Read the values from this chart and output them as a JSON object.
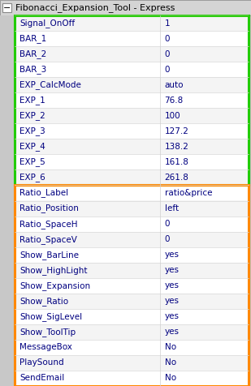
{
  "title": "Fibonacci_Expansion_Tool - Express",
  "green_rows": [
    [
      "Signal_OnOff",
      "1"
    ],
    [
      "BAR_1",
      "0"
    ],
    [
      "BAR_2",
      "0"
    ],
    [
      "BAR_3",
      "0"
    ],
    [
      "EXP_CalcMode",
      "auto"
    ],
    [
      "EXP_1",
      "76.8"
    ],
    [
      "EXP_2",
      "100"
    ],
    [
      "EXP_3",
      "127.2"
    ],
    [
      "EXP_4",
      "138.2"
    ],
    [
      "EXP_5",
      "161.8"
    ],
    [
      "EXP_6",
      "261.8"
    ]
  ],
  "orange_rows": [
    [
      "Ratio_Label",
      "ratio&price"
    ],
    [
      "Ratio_Position",
      "left"
    ],
    [
      "Ratio_SpaceH",
      "0"
    ],
    [
      "Ratio_SpaceV",
      "0"
    ],
    [
      "Show_BarLine",
      "yes"
    ],
    [
      "Show_HighLight",
      "yes"
    ],
    [
      "Show_Expansion",
      "yes"
    ],
    [
      "Show_Ratio",
      "yes"
    ],
    [
      "Show_SigLevel",
      "yes"
    ],
    [
      "Show_ToolTip",
      "yes"
    ],
    [
      "MessageBox",
      "No"
    ],
    [
      "PlaySound",
      "No"
    ],
    [
      "SendEmail",
      "No"
    ]
  ],
  "green_border": "#22cc00",
  "orange_border": "#ff8800",
  "row_bg_even": "#f4f4f4",
  "row_bg_odd": "#ffffff",
  "text_color": "#000080",
  "sidebar_color": "#c8c8c8",
  "title_bg": "#d4d4d4",
  "outer_bg": "#c0c0c0",
  "font_size": 7.5,
  "title_font_size": 8.0
}
